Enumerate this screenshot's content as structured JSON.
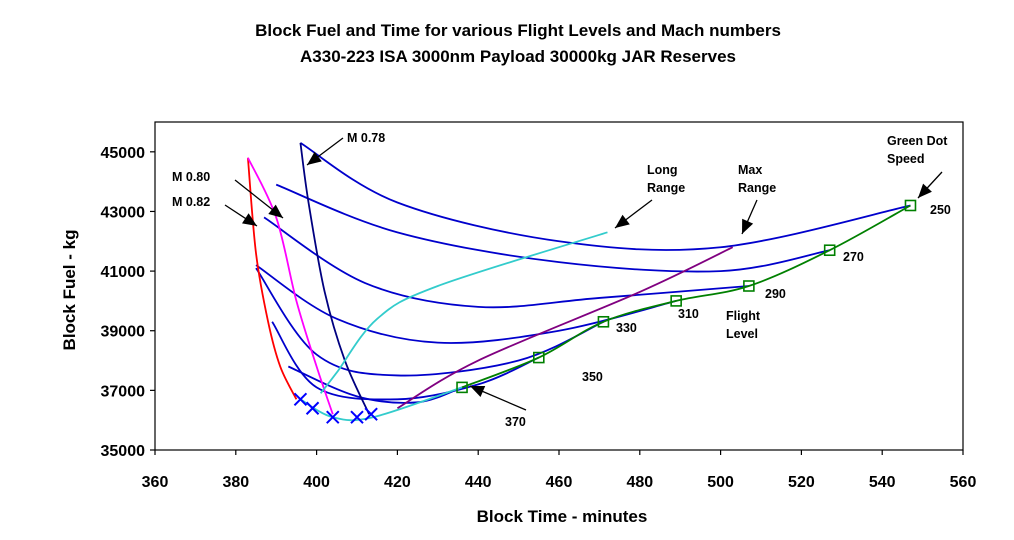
{
  "chart_data": {
    "type": "line",
    "title": "Block Fuel and Time for various Flight Levels and Mach numbers",
    "subtitle": "A330-223  ISA  3000nm  Payload 30000kg JAR Reserves",
    "xlabel": "Block Time - minutes",
    "ylabel": "Block Fuel - kg",
    "xlim": [
      360,
      560
    ],
    "ylim": [
      35000,
      46000
    ],
    "xticks": [
      360,
      380,
      400,
      420,
      440,
      460,
      480,
      500,
      520,
      540,
      560
    ],
    "yticks": [
      35000,
      37000,
      39000,
      41000,
      43000,
      45000
    ],
    "xtick_labels": [
      "360",
      "380",
      "400",
      "420",
      "440",
      "460",
      "480",
      "500",
      "520",
      "540",
      "560"
    ],
    "ytick_labels": [
      "35000",
      "37000",
      "39000",
      "41000",
      "43000",
      "45000"
    ],
    "grid": false,
    "series": [
      {
        "role": "flight-level",
        "color": "#0000cc",
        "x": [
          396,
          420,
          460,
          500,
          547
        ],
        "y": [
          45300,
          43300,
          42000,
          41800,
          43200
        ]
      },
      {
        "role": "flight-level",
        "color": "#0000cc",
        "x": [
          390,
          420,
          460,
          500,
          527
        ],
        "y": [
          43900,
          42300,
          41300,
          41000,
          41700
        ]
      },
      {
        "role": "flight-level",
        "color": "#0000cc",
        "x": [
          387,
          412,
          440,
          470,
          507
        ],
        "y": [
          42800,
          40600,
          39800,
          40100,
          40500
        ]
      },
      {
        "role": "flight-level",
        "color": "#0000cc",
        "x": [
          385,
          405,
          430,
          460,
          489
        ],
        "y": [
          41200,
          39400,
          38600,
          39000,
          40000
        ]
      },
      {
        "role": "flight-level",
        "color": "#0000cc",
        "x": [
          385,
          400,
          420,
          450,
          471
        ],
        "y": [
          41100,
          38200,
          37500,
          38000,
          39300
        ]
      },
      {
        "role": "flight-level",
        "color": "#0000cc",
        "x": [
          389,
          400,
          420,
          440,
          455
        ],
        "y": [
          39300,
          37100,
          36700,
          37200,
          38100
        ]
      },
      {
        "role": "flight-level",
        "color": "#0000cc",
        "x": [
          393,
          410,
          425,
          436
        ],
        "y": [
          37800,
          36800,
          36600,
          37100
        ]
      },
      {
        "role": "mach-0.82",
        "color": "#ff0000",
        "x": [
          383,
          385,
          388,
          391,
          395
        ],
        "y": [
          44800,
          41600,
          39300,
          37800,
          36700
        ]
      },
      {
        "role": "mach-0.80",
        "color": "#ff00ff",
        "x": [
          383,
          390,
          395,
          400,
          404
        ],
        "y": [
          44800,
          42800,
          40000,
          37800,
          36200
        ]
      },
      {
        "role": "mach-0.78",
        "color": "#000080",
        "x": [
          396,
          398,
          402,
          407,
          413
        ],
        "y": [
          45300,
          43300,
          40300,
          38000,
          36200
        ]
      },
      {
        "role": "long-range",
        "color": "#33cccc",
        "x": [
          401,
          405,
          415,
          430,
          472
        ],
        "y": [
          36900,
          37600,
          39400,
          40500,
          42300
        ]
      },
      {
        "role": "max-range",
        "color": "#800080",
        "x": [
          420,
          440,
          480,
          503
        ],
        "y": [
          36400,
          38000,
          40300,
          41800
        ]
      },
      {
        "role": "green-dot",
        "color": "#008000",
        "x": [
          436,
          455,
          471,
          489,
          507,
          527,
          547
        ],
        "y": [
          37100,
          38100,
          39300,
          40000,
          40500,
          41700,
          43200
        ]
      },
      {
        "role": "bottom",
        "color": "#33cccc",
        "x": [
          396,
          404,
          414,
          436
        ],
        "y": [
          36700,
          36100,
          36100,
          37100
        ]
      }
    ],
    "green_dot_points": {
      "x": [
        436,
        455,
        471,
        489,
        507,
        527,
        547
      ],
      "y": [
        37100,
        38100,
        39300,
        40000,
        40500,
        41700,
        43200
      ]
    },
    "cross_markers": {
      "x": [
        396,
        399,
        404,
        410,
        413.5
      ],
      "y": [
        36700,
        36400,
        36100,
        36100,
        36200
      ]
    },
    "annotations": [
      {
        "id": "m078",
        "text": "M 0.78",
        "arrow_x": 398,
        "arrow_y": 44600
      },
      {
        "id": "m080",
        "text": "M 0.80",
        "arrow_x": 391,
        "arrow_y": 42900
      },
      {
        "id": "m082",
        "text": "M 0.82",
        "arrow_x": 385,
        "arrow_y": 42800
      },
      {
        "id": "long-range-l1",
        "text": "Long"
      },
      {
        "id": "long-range-l2",
        "text": "Range"
      },
      {
        "id": "max-range-l1",
        "text": "Max"
      },
      {
        "id": "max-range-l2",
        "text": "Range"
      },
      {
        "id": "gds-l1",
        "text": "Green Dot"
      },
      {
        "id": "gds-l2",
        "text": "Speed"
      },
      {
        "id": "fl-l1",
        "text": "Flight"
      },
      {
        "id": "fl-l2",
        "text": "Level"
      },
      {
        "id": "fl250",
        "text": "250"
      },
      {
        "id": "fl270",
        "text": "270"
      },
      {
        "id": "fl290",
        "text": "290"
      },
      {
        "id": "fl310",
        "text": "310"
      },
      {
        "id": "fl330",
        "text": "330"
      },
      {
        "id": "fl350",
        "text": "350"
      },
      {
        "id": "fl370",
        "text": "370"
      }
    ]
  }
}
